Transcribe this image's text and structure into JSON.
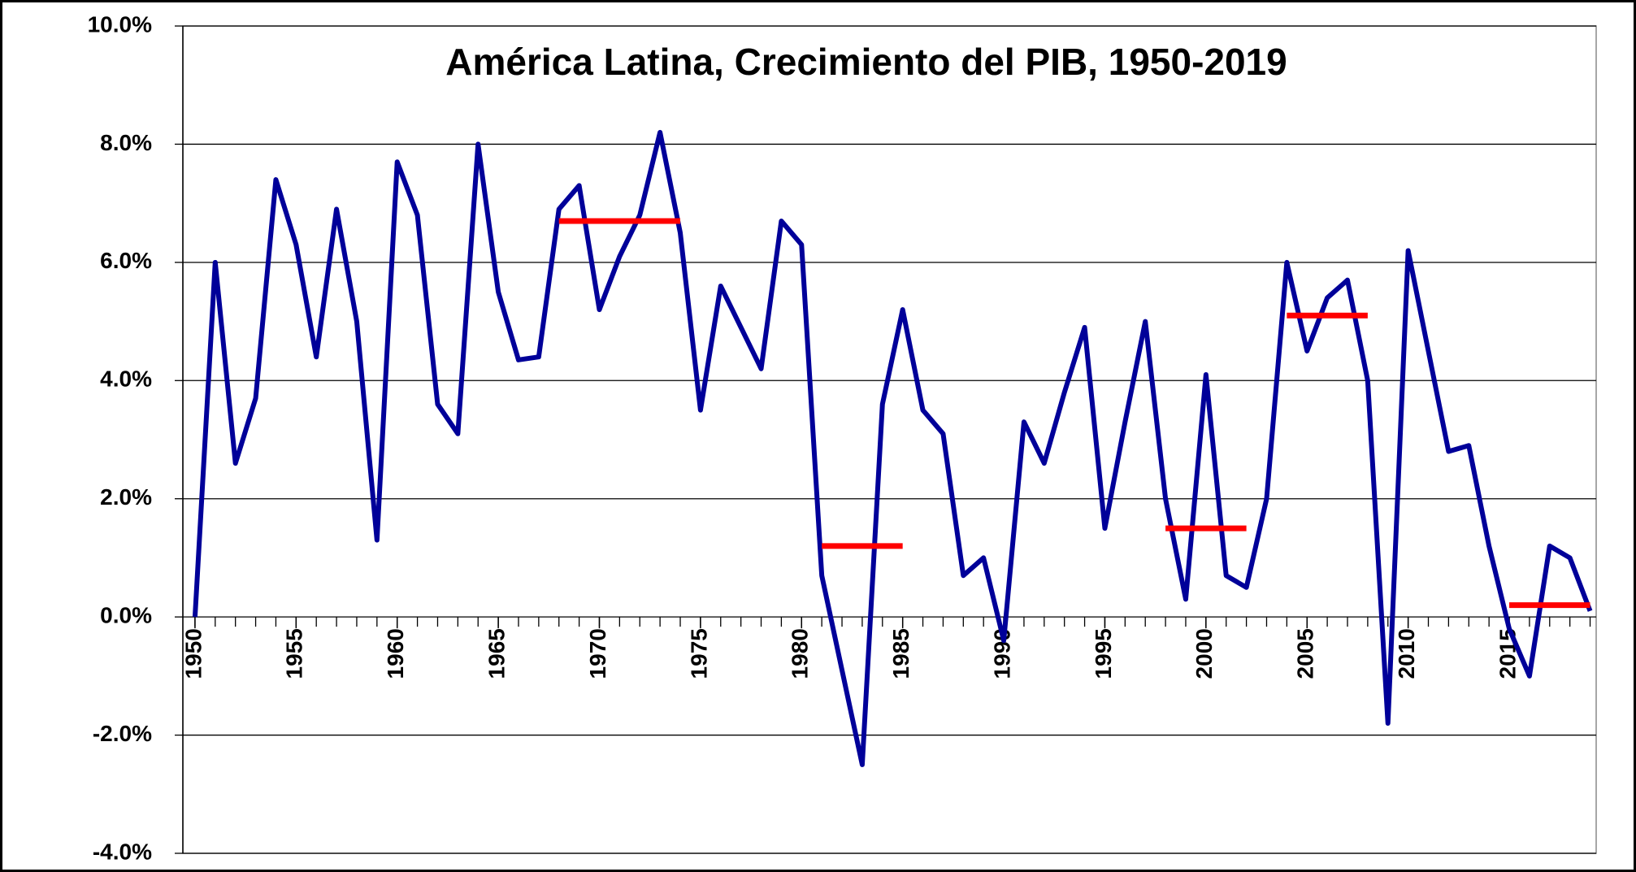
{
  "chart_data": {
    "type": "line",
    "title": "América Latina, Crecimiento del PIB, 1950-2019",
    "x": [
      1950,
      1951,
      1952,
      1953,
      1954,
      1955,
      1956,
      1957,
      1958,
      1959,
      1960,
      1961,
      1962,
      1963,
      1964,
      1965,
      1966,
      1967,
      1968,
      1969,
      1970,
      1971,
      1972,
      1973,
      1974,
      1975,
      1976,
      1977,
      1978,
      1979,
      1980,
      1981,
      1982,
      1983,
      1984,
      1985,
      1986,
      1987,
      1988,
      1989,
      1990,
      1991,
      1992,
      1993,
      1994,
      1995,
      1996,
      1997,
      1998,
      1999,
      2000,
      2001,
      2002,
      2003,
      2004,
      2005,
      2006,
      2007,
      2008,
      2009,
      2010,
      2011,
      2012,
      2013,
      2014,
      2015,
      2016,
      2017,
      2018,
      2019
    ],
    "series": [
      {
        "color": "#000099",
        "values": [
          0.0,
          6.0,
          2.6,
          3.7,
          7.4,
          6.3,
          4.4,
          6.9,
          5.0,
          1.3,
          7.7,
          6.8,
          3.6,
          3.1,
          8.0,
          5.5,
          4.35,
          4.4,
          6.9,
          7.3,
          5.2,
          6.1,
          6.8,
          8.2,
          6.5,
          3.5,
          5.6,
          4.9,
          4.2,
          6.7,
          6.3,
          0.7,
          -0.9,
          -2.5,
          3.6,
          5.2,
          3.5,
          3.1,
          0.7,
          1.0,
          -0.4,
          3.3,
          2.6,
          3.8,
          4.9,
          1.5,
          3.3,
          5.0,
          2.0,
          0.3,
          4.1,
          0.7,
          0.5,
          2.0,
          6.0,
          4.5,
          5.4,
          5.7,
          4.0,
          -1.8,
          6.2,
          4.5,
          2.8,
          2.9,
          1.2,
          -0.2,
          -1.0,
          1.2,
          1.0,
          0.1
        ]
      }
    ],
    "averages": {
      "color": "#ff0000",
      "segments": [
        {
          "start": 1968,
          "end": 1974,
          "value": 6.7
        },
        {
          "start": 1981,
          "end": 1985,
          "value": 1.2
        },
        {
          "start": 1998,
          "end": 2002,
          "value": 1.5
        },
        {
          "start": 2004,
          "end": 2008,
          "value": 5.1
        },
        {
          "start": 2015,
          "end": 2019,
          "value": 0.2
        }
      ]
    },
    "xlim": [
      1949.4,
      2019.3
    ],
    "xticks": [
      1950,
      1955,
      1960,
      1965,
      1970,
      1975,
      1980,
      1985,
      1990,
      1995,
      2000,
      2005,
      2010,
      2015
    ],
    "ylim": [
      -4,
      10
    ],
    "yticks": [
      {
        "value": -4,
        "label": "-4.0%"
      },
      {
        "value": -2,
        "label": "-2.0%"
      },
      {
        "value": 0,
        "label": "0.0%"
      },
      {
        "value": 2,
        "label": "2.0%"
      },
      {
        "value": 4,
        "label": "4.0%"
      },
      {
        "value": 6,
        "label": "6.0%"
      },
      {
        "value": 8,
        "label": "8.0%"
      },
      {
        "value": 10,
        "label": "10.0%"
      }
    ],
    "grid": true
  }
}
